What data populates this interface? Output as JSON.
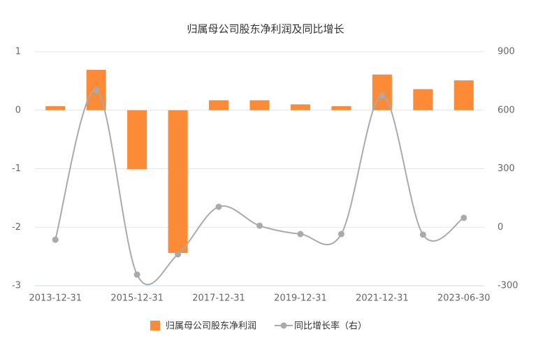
{
  "chart_data": {
    "type": "bar-line",
    "title": "归属母公司股东净利润及同比增长",
    "categories": [
      "2013-12-31",
      null,
      "2015-12-31",
      null,
      "2017-12-31",
      null,
      "2019-12-31",
      null,
      "2021-12-31",
      null,
      "2023-06-30"
    ],
    "series": [
      {
        "name": "归属母公司股东净利润",
        "type": "bar",
        "color": "#fd8a37",
        "values": [
          0.07,
          0.69,
          -1.01,
          -2.44,
          0.17,
          0.17,
          0.1,
          0.07,
          0.61,
          0.36,
          0.51
        ]
      },
      {
        "name": "同比增长率（右）",
        "type": "line",
        "axis": "y2",
        "color": "#aaaaaa",
        "values": [
          -64,
          703,
          -243,
          -139,
          105,
          8,
          -35,
          -35,
          675,
          -38,
          48
        ]
      }
    ],
    "ylim": [
      -3,
      1
    ],
    "yticks": [
      -3,
      -2,
      -1,
      0,
      1
    ],
    "y2lim": [
      -300,
      900
    ],
    "y2ticks": [
      -300,
      0,
      300,
      600,
      900
    ],
    "grid": true,
    "legend": "bottom"
  }
}
